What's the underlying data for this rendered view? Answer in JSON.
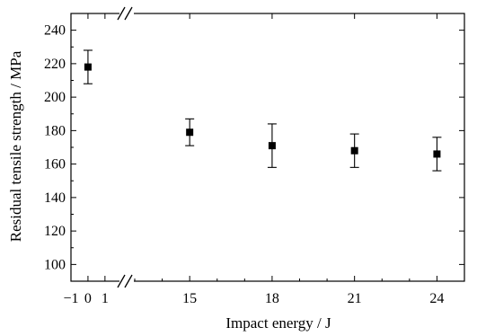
{
  "chart_data": {
    "type": "scatter",
    "xlabel": "Impact energy / J",
    "ylabel": "Residual tensile strength / MPa",
    "x_axis_break": true,
    "xlim_segments": [
      [
        -1,
        1.8
      ],
      [
        13,
        25
      ]
    ],
    "ylim": [
      90,
      250
    ],
    "x_ticks": [
      {
        "value": -1,
        "label": "−1"
      },
      {
        "value": 0,
        "label": "0"
      },
      {
        "value": 1,
        "label": "1"
      },
      {
        "value": 15,
        "label": "15"
      },
      {
        "value": 18,
        "label": "18"
      },
      {
        "value": 21,
        "label": "21"
      },
      {
        "value": 24,
        "label": "24"
      }
    ],
    "y_ticks": [
      100,
      120,
      140,
      160,
      180,
      200,
      220,
      240
    ],
    "points": [
      {
        "x": 0,
        "y": 218,
        "err_low": 10,
        "err_high": 10
      },
      {
        "x": 15,
        "y": 179,
        "err_low": 8,
        "err_high": 8
      },
      {
        "x": 18,
        "y": 171,
        "err_low": 13,
        "err_high": 13
      },
      {
        "x": 21,
        "y": 168,
        "err_low": 10,
        "err_high": 10
      },
      {
        "x": 24,
        "y": 166,
        "err_low": 10,
        "err_high": 10
      }
    ],
    "marker": "square",
    "color": "#000000",
    "grid": false
  }
}
